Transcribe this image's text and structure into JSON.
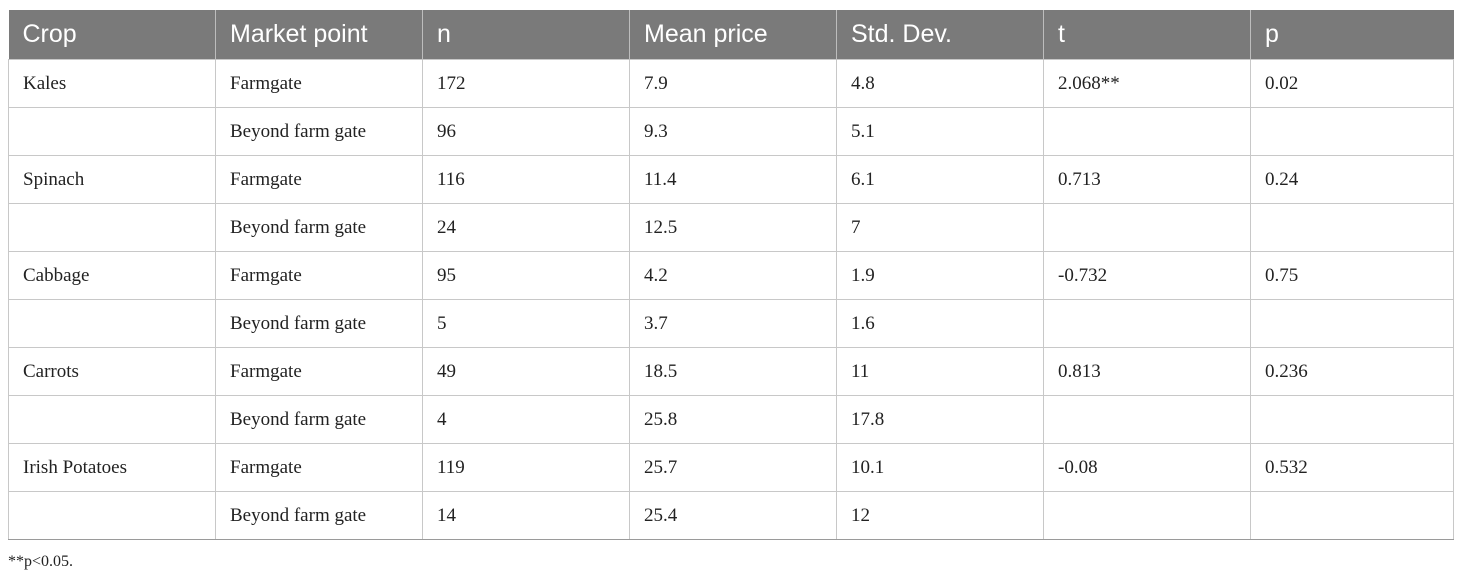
{
  "table": {
    "headers": [
      "Crop",
      "Market point",
      "n",
      "Mean price",
      "Std. Dev.",
      "t",
      "p"
    ],
    "rows": [
      [
        "Kales",
        "Farmgate",
        "172",
        "7.9",
        "4.8",
        "2.068**",
        "0.02"
      ],
      [
        "",
        "Beyond farm gate",
        "96",
        "9.3",
        "5.1",
        "",
        ""
      ],
      [
        "Spinach",
        "Farmgate",
        "116",
        "11.4",
        "6.1",
        "0.713",
        "0.24"
      ],
      [
        "",
        "Beyond farm gate",
        "24",
        "12.5",
        "7",
        "",
        ""
      ],
      [
        "Cabbage",
        "Farmgate",
        "95",
        "4.2",
        "1.9",
        "-0.732",
        "0.75"
      ],
      [
        "",
        "Beyond farm gate",
        "5",
        "3.7",
        "1.6",
        "",
        ""
      ],
      [
        "Carrots",
        "Farmgate",
        "49",
        "18.5",
        "11",
        "0.813",
        "0.236"
      ],
      [
        "",
        "Beyond farm gate",
        "4",
        "25.8",
        "17.8",
        "",
        ""
      ],
      [
        "Irish Potatoes",
        "Farmgate",
        "119",
        "25.7",
        "10.1",
        "-0.08",
        "0.532"
      ],
      [
        "",
        "Beyond farm gate",
        "14",
        "25.4",
        "12",
        "",
        ""
      ]
    ]
  },
  "footnote": "**p<0.05."
}
